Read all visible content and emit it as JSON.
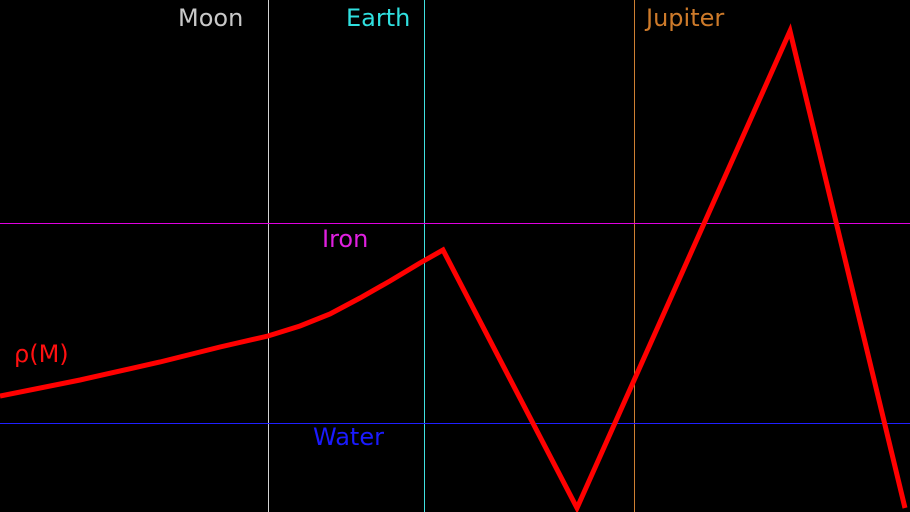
{
  "chart_data": {
    "type": "line",
    "title": "",
    "xlabel": "",
    "ylabel": "",
    "grid": false,
    "series": [
      {
        "name": "ρ(M)",
        "color": "#ff0000",
        "points": [
          [
            0,
            396
          ],
          [
            80,
            380
          ],
          [
            160,
            362
          ],
          [
            220,
            347
          ],
          [
            268,
            336
          ],
          [
            300,
            326
          ],
          [
            330,
            314
          ],
          [
            360,
            298
          ],
          [
            390,
            281
          ],
          [
            420,
            263
          ],
          [
            443,
            250
          ],
          [
            577,
            508
          ],
          [
            790,
            31
          ],
          [
            905,
            508
          ]
        ]
      }
    ],
    "vertical_markers": [
      {
        "label": "Moon",
        "x": 268,
        "color": "#d3d3d3",
        "label_color": "#c8c8c8"
      },
      {
        "label": "Earth",
        "x": 424,
        "color": "#40e0e0",
        "label_color": "#30e0e0"
      },
      {
        "label": "Jupiter",
        "x": 634,
        "color": "#cd7f32",
        "label_color": "#cd7a2a"
      }
    ],
    "horizontal_markers": [
      {
        "label": "Iron",
        "y": 223,
        "color": "#e000e0",
        "label_color": "#e020e0"
      },
      {
        "label": "Water",
        "y": 423,
        "color": "#2020ff",
        "label_color": "#1a1aff"
      }
    ],
    "series_label": "ρ(M)"
  }
}
